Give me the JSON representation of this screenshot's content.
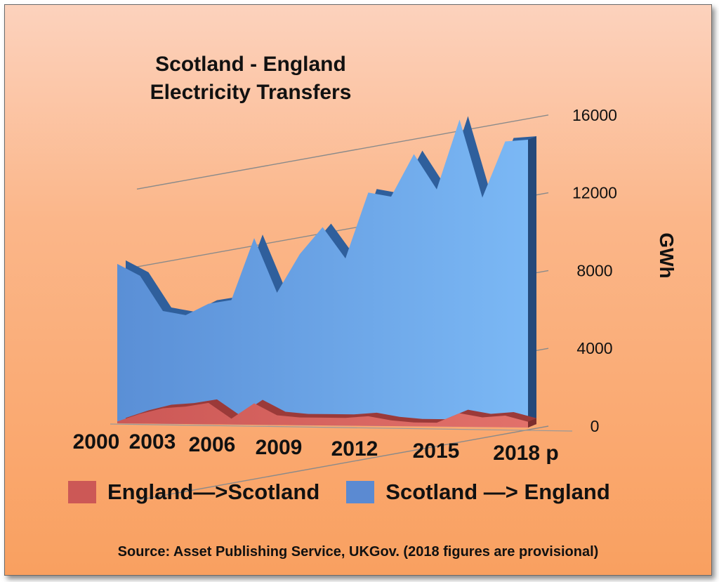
{
  "chart_data": {
    "type": "area",
    "title_lines": [
      "Scotland - England",
      "Electricity Transfers"
    ],
    "ylabel": "GWh",
    "ylim": [
      0,
      16000
    ],
    "yticks": [
      0,
      4000,
      8000,
      12000,
      16000
    ],
    "x": [
      2000,
      2001,
      2002,
      2003,
      2004,
      2005,
      2006,
      2007,
      2008,
      2009,
      2010,
      2011,
      2012,
      2013,
      2014,
      2015,
      2016,
      2017,
      2018
    ],
    "x_tick_labels": [
      "2000",
      "2003",
      "2006",
      "2009",
      "2012",
      "2015",
      "2018 p"
    ],
    "x_tick_years": [
      2000,
      2003,
      2006,
      2009,
      2012,
      2015,
      2018
    ],
    "series": [
      {
        "name": "England—>Scotland",
        "color": "#cc5856",
        "values": [
          100,
          500,
          800,
          900,
          1100,
          300,
          1100,
          500,
          400,
          400,
          400,
          500,
          300,
          200,
          200,
          700,
          500,
          600,
          300
        ]
      },
      {
        "name": "Scotland —> England",
        "color": "#5b8ad2",
        "values": [
          8200,
          7600,
          5800,
          5600,
          6200,
          6400,
          9600,
          6800,
          8800,
          10200,
          8600,
          12000,
          11800,
          14000,
          12200,
          15800,
          11800,
          14700,
          14800
        ]
      }
    ],
    "legend_position": "bottom",
    "grid": true
  },
  "source_note": "Source: Asset Publishing Service, UKGov. (2018 figures are provisional)"
}
